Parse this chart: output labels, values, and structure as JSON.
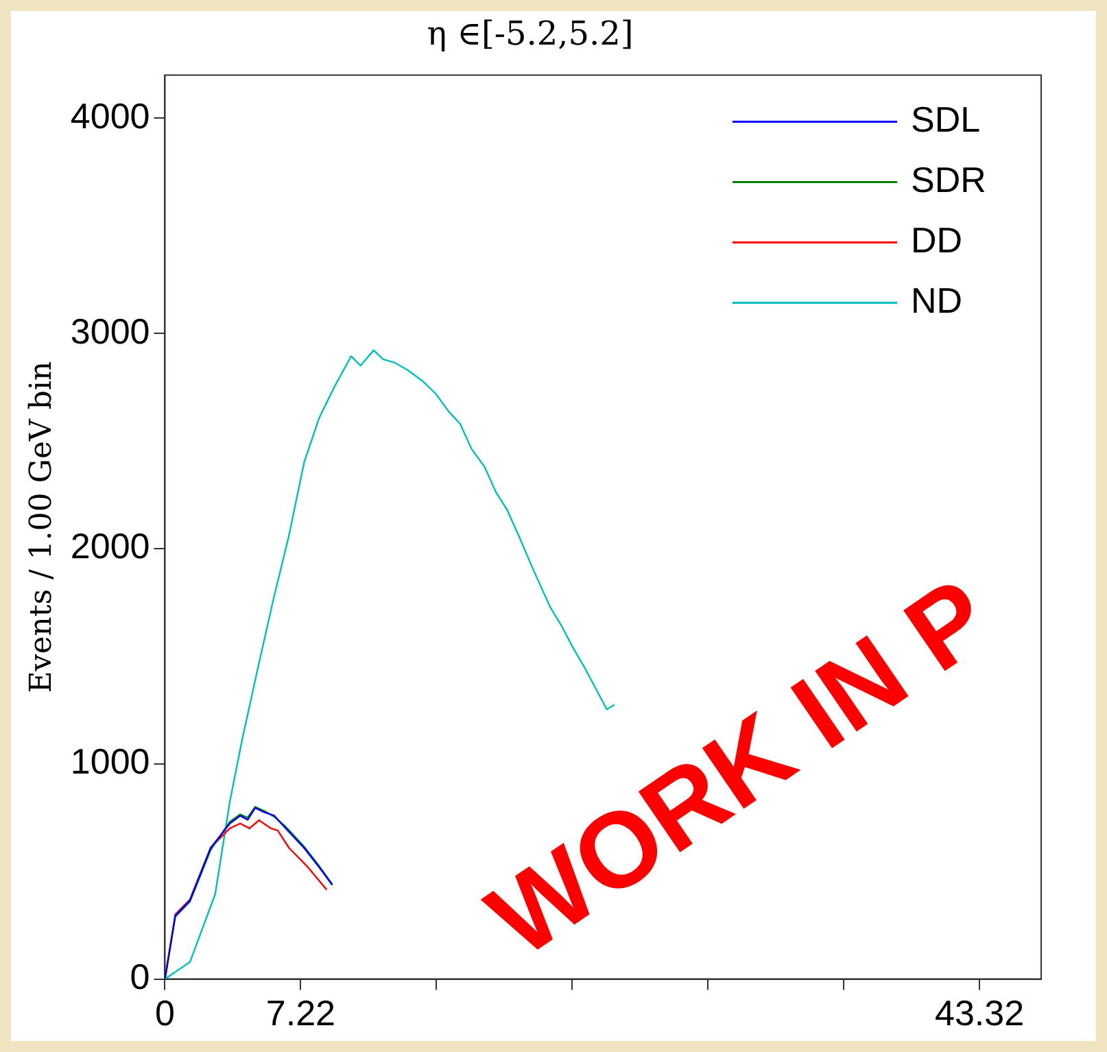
{
  "chart_data": {
    "type": "line",
    "title": "η ∈[-5.2,5.2]",
    "ylabel": "Events / 1.00 GeV bin",
    "xlim": [
      0,
      46.6
    ],
    "xticks": [
      0,
      7.22,
      {
        "value": 14.44,
        "label": null
      },
      {
        "value": 21.66,
        "label": null
      },
      {
        "value": 28.88,
        "label": null
      },
      {
        "value": 36.1,
        "label": null
      },
      43.32
    ],
    "ylim": [
      0,
      4200
    ],
    "yticks": [
      0,
      1000,
      2000,
      3000,
      4000
    ],
    "grid": false,
    "legend": "top right",
    "marker": "none",
    "line_style": "solid",
    "annotations": [
      "WORK IN P"
    ],
    "series": [
      {
        "name": "SDL",
        "color": "#0000ff",
        "x": [
          0,
          0.55,
          1.33,
          2.43,
          3.45,
          4.0,
          4.4,
          4.8,
          5.3,
          5.8,
          6.4,
          7.4,
          8.2,
          8.9
        ],
        "values": [
          0,
          294,
          365,
          609,
          723,
          759,
          740,
          795,
          774,
          760,
          702,
          609,
          520,
          437
        ]
      },
      {
        "name": "SDR",
        "color": "#008000",
        "x": [
          0,
          0.55,
          1.33,
          2.43,
          3.45,
          4.0,
          4.4,
          4.8,
          5.3,
          5.8,
          6.4,
          7.4,
          8.2,
          8.9
        ],
        "values": [
          0,
          290,
          360,
          600,
          730,
          765,
          750,
          800,
          780,
          755,
          710,
          615,
          525,
          440
        ]
      },
      {
        "name": "DD",
        "color": "#ff0000",
        "x": [
          0,
          0.55,
          1.33,
          2.43,
          3.45,
          4.0,
          4.5,
          5.0,
          5.6,
          6.0,
          6.6,
          7.6,
          8.6
        ],
        "values": [
          0,
          300,
          370,
          610,
          700,
          723,
          700,
          738,
          702,
          690,
          609,
          520,
          415
        ]
      },
      {
        "name": "ND",
        "color": "#00bfbf",
        "x": [
          0,
          1.33,
          2.67,
          3.45,
          4.1,
          5.0,
          5.8,
          6.6,
          7.4,
          8.2,
          9.0,
          9.9,
          10.4,
          11.1,
          11.6,
          12.2,
          12.9,
          13.7,
          14.4,
          15.1,
          15.7,
          16.3,
          17.0,
          17.6,
          18.2,
          18.8,
          19.6,
          20.5,
          21.1,
          21.7,
          22.3,
          22.8,
          23.5,
          23.9
        ],
        "values": [
          0,
          79,
          394,
          824,
          1110,
          1468,
          1776,
          2063,
          2400,
          2607,
          2750,
          2894,
          2850,
          2922,
          2880,
          2865,
          2830,
          2779,
          2720,
          2636,
          2580,
          2464,
          2380,
          2263,
          2180,
          2063,
          1900,
          1726,
          1640,
          1540,
          1450,
          1368,
          1253,
          1275
        ]
      }
    ]
  }
}
